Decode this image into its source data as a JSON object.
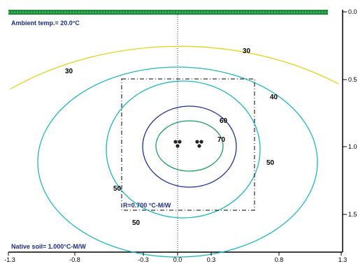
{
  "annotations": {
    "ambient": "Ambient temp.= 20.0°C",
    "native_soil": "Native soil= 1.000°C-M/W",
    "backfill": "R=0.700 °C-M/W"
  },
  "colors": {
    "ground_strip": "#1d8c3a",
    "axis": "#000000",
    "iso_30": "#e3d31b",
    "iso_40": "#1fb7c4",
    "iso_50": "#1fb7c4",
    "iso_60": "#1b2f9a",
    "iso_70": "#1aa05a",
    "info_text": "#1d2a8c"
  },
  "chart_data": {
    "type": "contour",
    "title": "",
    "xlabel": "",
    "ylabel": "",
    "xlim": [
      -1.3,
      1.3
    ],
    "ylim": [
      0.0,
      1.8
    ],
    "y_inverted": true,
    "grid": false,
    "x_ticks": [
      "-1.3",
      "-0.8",
      "-0.3",
      "0.0",
      "0.3",
      "0.8",
      "1.3"
    ],
    "y_ticks": [
      "0.0",
      "0.5",
      "1.0",
      "1.5"
    ],
    "isotherms": [
      {
        "value": 30,
        "color": "#e3d31b"
      },
      {
        "value": 40,
        "color": "#1fb7c4"
      },
      {
        "value": 50,
        "color": "#1fb7c4"
      },
      {
        "value": 60,
        "color": "#1b2f9a"
      },
      {
        "value": 70,
        "color": "#1aa05a"
      }
    ],
    "contour_labels": [
      {
        "text": "30",
        "x": 0.99,
        "y": 0.28
      },
      {
        "text": "30",
        "x": -1.08,
        "y": 0.42
      },
      {
        "text": "40",
        "x": 1.37,
        "y": 0.6
      },
      {
        "text": "60",
        "x": 0.67,
        "y": 0.79
      },
      {
        "text": "70",
        "x": 0.62,
        "y": 0.94
      },
      {
        "text": "50",
        "x": 1.33,
        "y": 1.11
      },
      {
        "text": "50",
        "x": -0.86,
        "y": 1.31
      },
      {
        "text": "50",
        "x": -0.58,
        "y": 1.58
      }
    ],
    "cables": [
      {
        "x": 0.0,
        "y": 0.98
      },
      {
        "x": 0.3,
        "y": 0.98
      }
    ],
    "backfill": {
      "x0": -0.8,
      "x1": 1.0,
      "y0": 0.5,
      "y1": 1.5
    }
  }
}
